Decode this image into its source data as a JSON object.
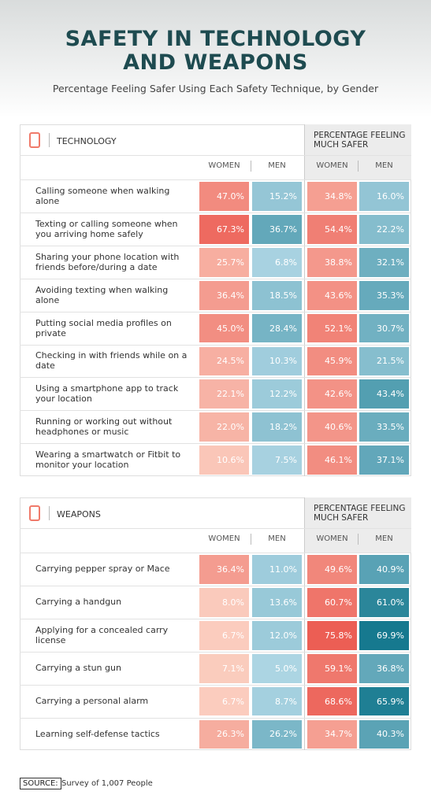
{
  "header": {
    "title_lines": [
      "SAFETY IN TECHNOLOGY",
      "AND WEAPONS"
    ],
    "subtitle": "Percentage Feeling Safer Using Each Safety Technique, by Gender"
  },
  "sections": [
    {
      "name": "TECHNOLOGY",
      "group_header": "PERCENTAGE FEELING MUCH SAFER",
      "columns": [
        "WOMEN",
        "MEN",
        "WOMEN",
        "MEN"
      ],
      "rows": [
        {
          "label": "Calling someone when walking alone",
          "cells": [
            "47.0%",
            "15.2%",
            "34.8%",
            "16.0%"
          ]
        },
        {
          "label": "Texting or calling someone when you arriving home safely",
          "cells": [
            "67.3%",
            "36.7%",
            "54.4%",
            "22.2%"
          ]
        },
        {
          "label": "Sharing your phone location with friends before/during a date",
          "cells": [
            "25.7%",
            "6.8%",
            "38.8%",
            "32.1%"
          ]
        },
        {
          "label": "Avoiding texting when walking alone",
          "cells": [
            "36.4%",
            "18.5%",
            "43.6%",
            "35.3%"
          ]
        },
        {
          "label": "Putting social media profiles on private",
          "cells": [
            "45.0%",
            "28.4%",
            "52.1%",
            "30.7%"
          ]
        },
        {
          "label": "Checking in with friends while on a date",
          "cells": [
            "24.5%",
            "10.3%",
            "45.9%",
            "21.5%"
          ]
        },
        {
          "label": "Using a smartphone app to track your location",
          "cells": [
            "22.1%",
            "12.2%",
            "42.6%",
            "43.4%"
          ]
        },
        {
          "label": "Running or working out without headphones or music",
          "cells": [
            "22.0%",
            "18.2%",
            "40.6%",
            "33.5%"
          ]
        },
        {
          "label": "Wearing a smartwatch or Fitbit to monitor your location",
          "cells": [
            "10.6%",
            "7.5%",
            "46.1%",
            "37.1%"
          ]
        }
      ]
    },
    {
      "name": "WEAPONS",
      "group_header": "PERCENTAGE FEELING MUCH SAFER",
      "columns": [
        "WOMEN",
        "MEN",
        "WOMEN",
        "MEN"
      ],
      "rows": [
        {
          "label": "Carrying pepper spray or Mace",
          "cells": [
            "36.4%",
            "11.0%",
            "49.6%",
            "40.9%"
          ]
        },
        {
          "label": "Carrying a handgun",
          "cells": [
            "8.0%",
            "13.6%",
            "60.7%",
            "61.0%"
          ]
        },
        {
          "label": "Applying for a concealed carry license",
          "cells": [
            "6.7%",
            "12.0%",
            "75.8%",
            "69.9%"
          ]
        },
        {
          "label": "Carrying a stun gun",
          "cells": [
            "7.1%",
            "5.0%",
            "59.1%",
            "36.8%"
          ]
        },
        {
          "label": "Carrying a personal alarm",
          "cells": [
            "6.7%",
            "8.7%",
            "68.6%",
            "65.9%"
          ]
        },
        {
          "label": "Learning self-defense tactics",
          "cells": [
            "26.3%",
            "26.2%",
            "34.7%",
            "40.3%"
          ]
        }
      ]
    }
  ],
  "source": {
    "label": "SOURCE:",
    "text": "Survey of 1,007 People"
  }
}
